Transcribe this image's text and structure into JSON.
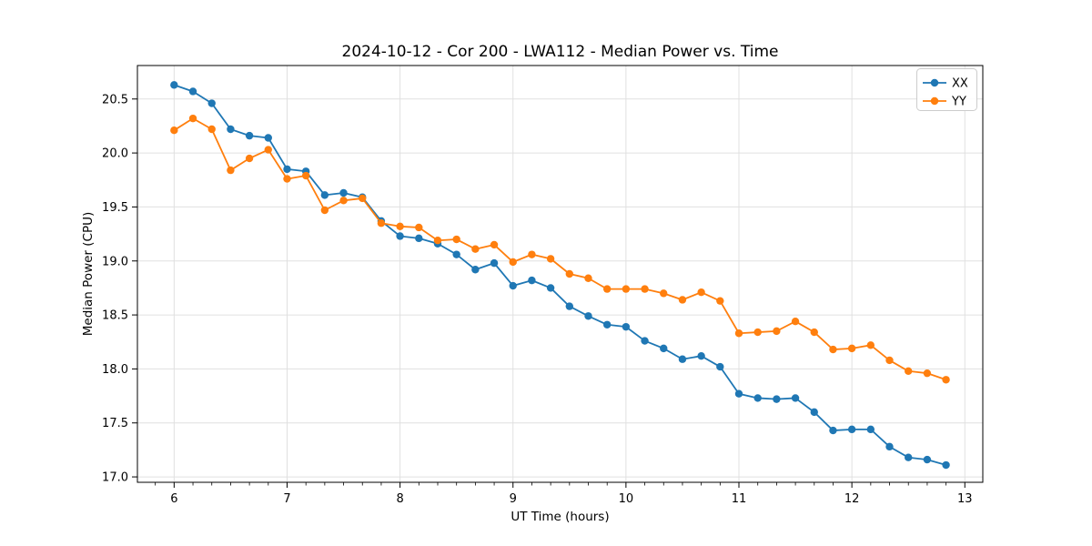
{
  "page": {
    "background": "#ffffff"
  },
  "chart_data": {
    "type": "line",
    "title": "2024-10-12 - Cor 200 - LWA112 - Median Power vs. Time",
    "xlabel": "UT Time (hours)",
    "ylabel": "Median Power (CPU)",
    "x": [
      6.0,
      6.1667,
      6.3333,
      6.5,
      6.6667,
      6.8333,
      7.0,
      7.1667,
      7.3333,
      7.5,
      7.6667,
      7.8333,
      8.0,
      8.1667,
      8.3333,
      8.5,
      8.6667,
      8.8333,
      9.0,
      9.1667,
      9.3333,
      9.5,
      9.6667,
      9.8333,
      10.0,
      10.1667,
      10.3333,
      10.5,
      10.6667,
      10.8333,
      11.0,
      11.1667,
      11.3333,
      11.5,
      11.6667,
      11.8333,
      12.0,
      12.1667,
      12.3333,
      12.5,
      12.6667,
      12.8333
    ],
    "series": [
      {
        "name": "XX",
        "color": "#1f77b4",
        "values": [
          20.63,
          20.57,
          20.46,
          20.22,
          20.16,
          20.14,
          19.85,
          19.83,
          19.61,
          19.63,
          19.59,
          19.37,
          19.23,
          19.21,
          19.16,
          19.06,
          18.92,
          18.98,
          18.77,
          18.82,
          18.75,
          18.58,
          18.49,
          18.41,
          18.39,
          18.26,
          18.19,
          18.09,
          18.12,
          18.02,
          17.77,
          17.73,
          17.72,
          17.73,
          17.6,
          17.43,
          17.44,
          17.44,
          17.28,
          17.18,
          17.16,
          17.11
        ]
      },
      {
        "name": "YY",
        "color": "#ff7f0e",
        "values": [
          20.21,
          20.32,
          20.22,
          19.84,
          19.95,
          20.03,
          19.76,
          19.79,
          19.47,
          19.56,
          19.58,
          19.35,
          19.32,
          19.31,
          19.19,
          19.2,
          19.11,
          19.15,
          18.99,
          19.06,
          19.02,
          18.88,
          18.84,
          18.74,
          18.74,
          18.74,
          18.7,
          18.64,
          18.71,
          18.63,
          18.33,
          18.34,
          18.35,
          18.44,
          18.34,
          18.18,
          18.19,
          18.22,
          18.08,
          17.98,
          17.96,
          17.9
        ]
      }
    ],
    "xlim": [
      5.675,
      13.159
    ],
    "ylim": [
      16.95,
      20.81
    ],
    "xticks": [
      6,
      7,
      8,
      9,
      10,
      11,
      12,
      13
    ],
    "xtick_labels": [
      "6",
      "7",
      "8",
      "9",
      "10",
      "11",
      "12",
      "13"
    ],
    "yticks": [
      17.0,
      17.5,
      18.0,
      18.5,
      19.0,
      19.5,
      20.0,
      20.5
    ],
    "ytick_labels": [
      "17.0",
      "17.5",
      "18.0",
      "18.5",
      "19.0",
      "19.5",
      "20.0",
      "20.5"
    ],
    "minor_xtick_step": 0.16667,
    "grid": true,
    "grid_color": "#e0e0e0",
    "axis_color": "#000000",
    "legend": {
      "position": "upper right",
      "entries": [
        "XX",
        "YY"
      ]
    }
  }
}
